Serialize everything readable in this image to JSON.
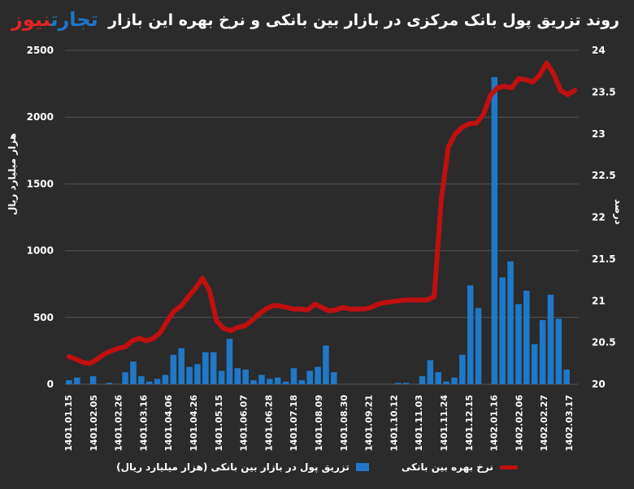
{
  "title": "روند تزریق پول بانک مرکزی در بازار بین بانکی و نرخ بهره این بازار",
  "logo": {
    "part1": "تجارت",
    "part2": "نیوز"
  },
  "colors": {
    "background": "#2b2b2b",
    "bars": "#1f78c8",
    "line": "#c01010",
    "grid": "#555555",
    "text": "#ffffff"
  },
  "chart_data": {
    "type": "bar+line",
    "ylabel_left": "هزار میلیارد ریال",
    "ylabel_right": "درصد",
    "ylim_left": [
      0,
      2500
    ],
    "ylim_right": [
      20,
      24
    ],
    "yticks_left": [
      "0",
      "500",
      "1000",
      "1500",
      "2000",
      "2500"
    ],
    "yticks_right": [
      "20",
      "20.5",
      "21",
      "21.5",
      "22",
      "22.5",
      "23",
      "23.5",
      "24"
    ],
    "grid": "horizontal",
    "legend_position": "bottom",
    "x_tick_labels": [
      "1401.01.15",
      "1401.02.05",
      "1401.02.26",
      "1401.03.16",
      "1401.04.06",
      "1401.04.26",
      "1401.05.15",
      "1401.06.07",
      "1401.06.28",
      "1401.07.18",
      "1401.08.09",
      "1401.08.30",
      "1401.09.21",
      "1401.10.12",
      "1401.11.03",
      "1401.11.24",
      "1401.12.15",
      "1402.01.16",
      "1402.02.06",
      "1402.02.27",
      "1402.03.17"
    ],
    "series": [
      {
        "name": "تزریق پول در بازار بین بانکی (هزار میلیارد ریال)",
        "type": "bar",
        "axis": "left",
        "values": [
          30,
          50,
          0,
          60,
          0,
          10,
          0,
          90,
          170,
          60,
          20,
          40,
          70,
          220,
          270,
          130,
          150,
          240,
          240,
          100,
          340,
          120,
          110,
          30,
          70,
          40,
          50,
          20,
          120,
          30,
          100,
          130,
          290,
          90,
          0,
          0,
          0,
          0,
          0,
          0,
          0,
          10,
          10,
          0,
          60,
          180,
          90,
          20,
          50,
          220,
          740,
          570,
          0,
          2300,
          800,
          920,
          600,
          700,
          300,
          480,
          670,
          490,
          110,
          0
        ]
      },
      {
        "name": "نرخ بهره بین بانکی",
        "type": "line",
        "axis": "right",
        "values": [
          20.33,
          20.3,
          20.26,
          20.25,
          20.3,
          20.36,
          20.4,
          20.43,
          20.45,
          20.52,
          20.55,
          20.52,
          20.55,
          20.62,
          20.76,
          20.88,
          20.94,
          21.05,
          21.15,
          21.27,
          21.12,
          20.76,
          20.67,
          20.64,
          20.68,
          20.7,
          20.76,
          20.84,
          20.9,
          20.94,
          20.94,
          20.92,
          20.9,
          20.9,
          20.89,
          20.96,
          20.92,
          20.88,
          20.89,
          20.92,
          20.9,
          20.9,
          20.9,
          20.92,
          20.96,
          20.98,
          20.99,
          21.0,
          21.01,
          21.01,
          21.01,
          21.01,
          21.05,
          22.21,
          22.84,
          23.0,
          23.08,
          23.12,
          23.13,
          23.23,
          23.46,
          23.55,
          23.57,
          23.55,
          23.66,
          23.65,
          23.62,
          23.7,
          23.85,
          23.72,
          23.52,
          23.47,
          23.52
        ]
      }
    ]
  }
}
